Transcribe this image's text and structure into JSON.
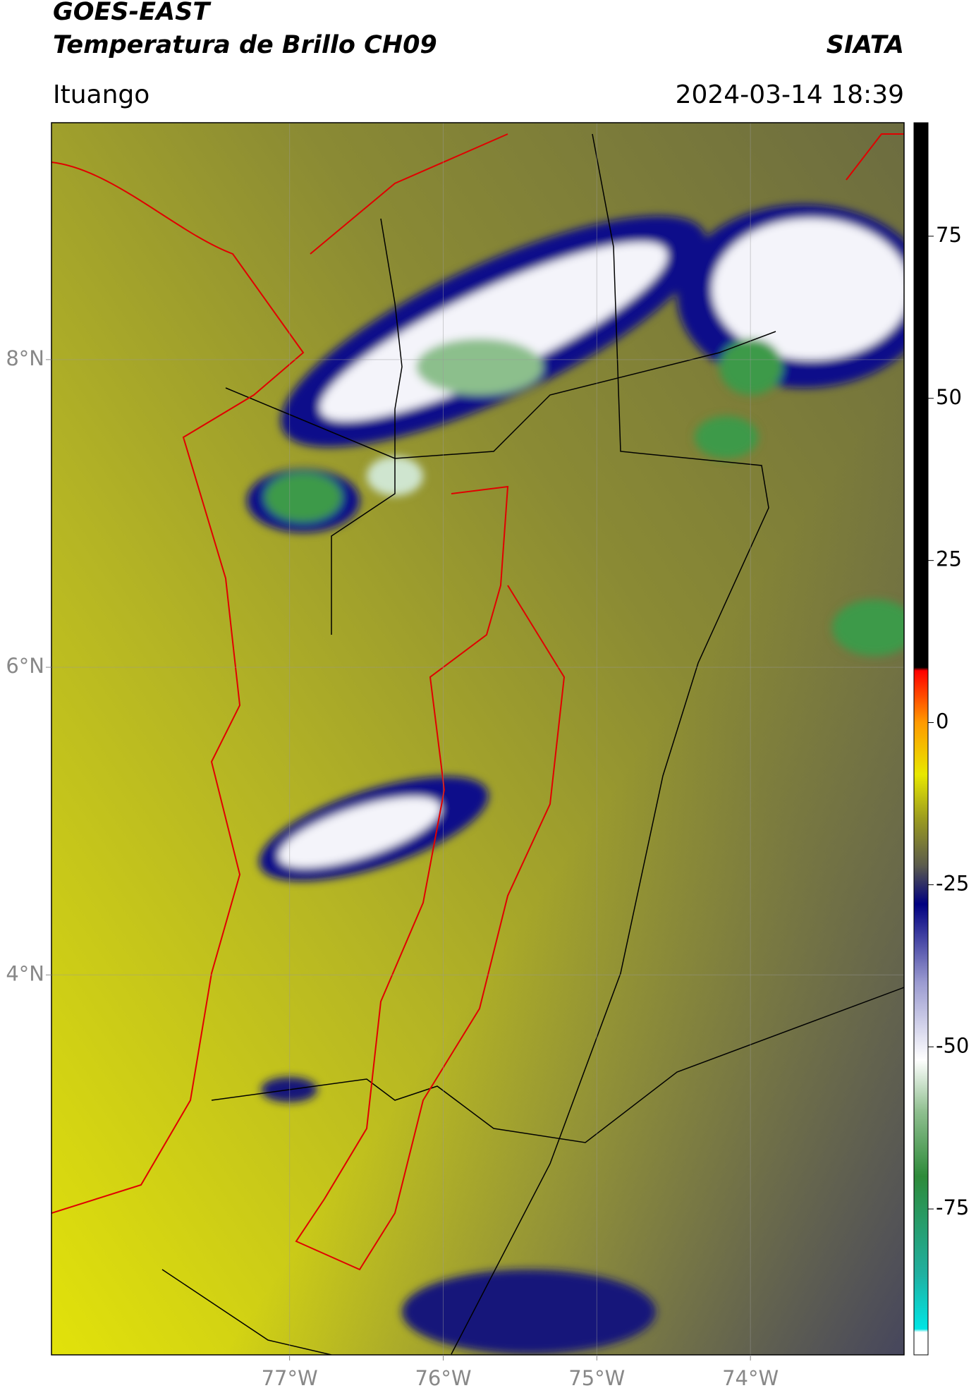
{
  "header": {
    "title": "GOES-EAST",
    "subtitle": "Temperatura de Brillo CH09",
    "source": "SIATA",
    "location": "Ituango",
    "datetime": "2024-03-14 18:39"
  },
  "map": {
    "xlim": [
      -78.55,
      -73.0
    ],
    "ylim": [
      1.53,
      9.54
    ],
    "xticks": [
      {
        "value": -77,
        "label": "77°W"
      },
      {
        "value": -76,
        "label": "76°W"
      },
      {
        "value": -75,
        "label": "75°W"
      },
      {
        "value": -74,
        "label": "74°W"
      }
    ],
    "yticks": [
      {
        "value": 8,
        "label": "8°N"
      },
      {
        "value": 6,
        "label": "6°N"
      },
      {
        "value": 4,
        "label": "4°N"
      }
    ],
    "grid": true
  },
  "colorbar": {
    "lim": [
      -97.5,
      92.5
    ],
    "ticks": [
      75,
      50,
      25,
      0,
      -25,
      -50,
      -75
    ],
    "stops": [
      {
        "value": -97.5,
        "color": "#ffffff"
      },
      {
        "value": -94,
        "color": "#ffffff"
      },
      {
        "value": -93.5,
        "color": "#00e5e5"
      },
      {
        "value": -85,
        "color": "#20b0a0"
      },
      {
        "value": -70,
        "color": "#2e8b3a"
      },
      {
        "value": -60,
        "color": "#8fbf8f"
      },
      {
        "value": -52,
        "color": "#ffffff"
      },
      {
        "value": -40,
        "color": "#9a9ad0"
      },
      {
        "value": -28,
        "color": "#000080"
      },
      {
        "value": -22,
        "color": "#5c5c4c"
      },
      {
        "value": -15,
        "color": "#9a9a20"
      },
      {
        "value": -8,
        "color": "#e8e800"
      },
      {
        "value": 0,
        "color": "#ff9a00"
      },
      {
        "value": 8,
        "color": "#ff0000"
      },
      {
        "value": 8.5,
        "color": "#000000"
      },
      {
        "value": 92.5,
        "color": "#000000"
      }
    ]
  }
}
